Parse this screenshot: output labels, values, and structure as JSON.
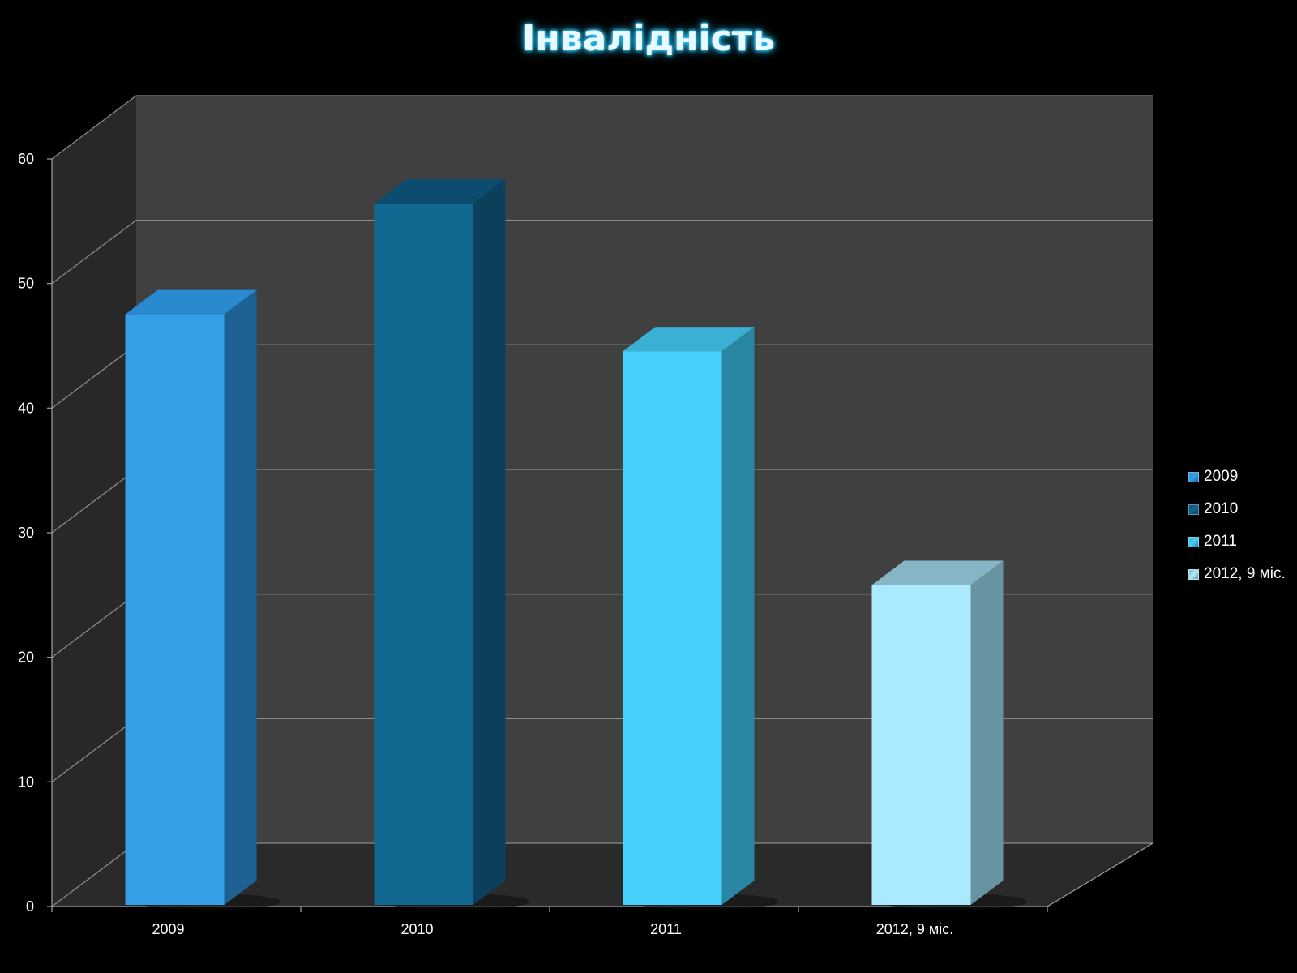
{
  "chart_data": {
    "type": "bar",
    "title": "Інвалідність",
    "categories": [
      "2009",
      "2010",
      "2011",
      "2012, 9 міс."
    ],
    "values": [
      48,
      57,
      45,
      26
    ],
    "ylim": [
      0,
      60
    ],
    "yticks": [
      "0",
      "10",
      "20",
      "30",
      "40",
      "50",
      "60"
    ],
    "grid": true,
    "three_d": true,
    "legend_position": "right",
    "colors": {
      "front": [
        "#33a0e8",
        "#136892",
        "#47cffc",
        "#abeafe"
      ],
      "side": [
        "#1d6292",
        "#0b3f5c",
        "#2987a4",
        "#6894a2"
      ],
      "top": [
        "#2a8ad0",
        "#0c4c6e",
        "#3ab0d4",
        "#86b6c6"
      ],
      "back_wall": "#404040",
      "side_wall": "#282828",
      "floor": "#2a2a2a",
      "gridline": "#8a8a8a"
    }
  }
}
